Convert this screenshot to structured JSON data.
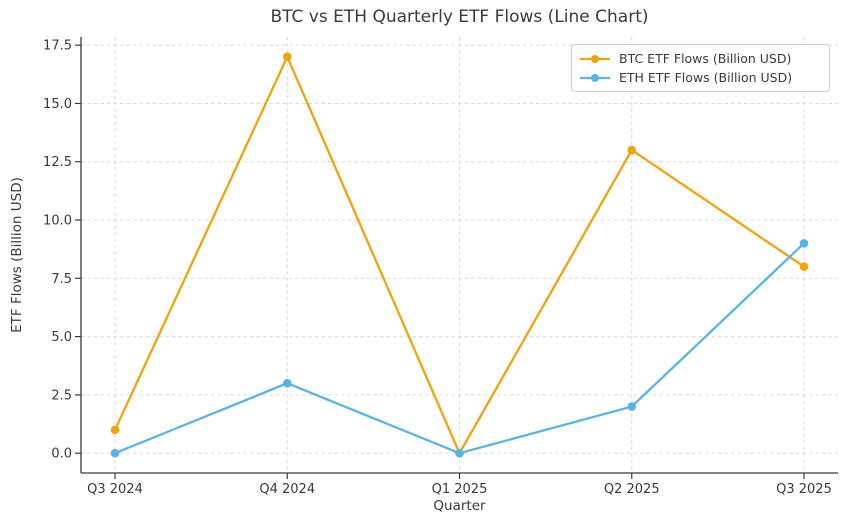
{
  "chart_data": {
    "type": "line",
    "title": "BTC vs ETH Quarterly ETF Flows (Line Chart)",
    "xlabel": "Quarter",
    "ylabel": "ETF Flows (Billion USD)",
    "categories": [
      "Q3 2024",
      "Q4 2024",
      "Q1 2025",
      "Q2 2025",
      "Q3 2025"
    ],
    "series": [
      {
        "name": "BTC ETF Flows (Billion USD)",
        "color": "#F0A30C",
        "marker": "circle",
        "values": [
          1,
          17,
          0,
          13,
          8
        ]
      },
      {
        "name": "ETH ETF Flows (Billion USD)",
        "color": "#56B4E9",
        "marker": "circle",
        "values": [
          0,
          3,
          0,
          2,
          9
        ]
      }
    ],
    "y_ticks": [
      0.0,
      2.5,
      5.0,
      7.5,
      10.0,
      12.5,
      15.0,
      17.5
    ],
    "y_tick_labels": [
      "0.0",
      "2.5",
      "5.0",
      "7.5",
      "10.0",
      "12.5",
      "15.0",
      "17.5"
    ],
    "ylim": [
      -0.85,
      17.85
    ],
    "grid": true,
    "grid_style": "dashed",
    "legend_position": "upper right",
    "text_color": "#3a3a3a",
    "grid_color": "#d9d9d9",
    "spine_color": "#3a3a3a",
    "background": "#ffffff"
  }
}
